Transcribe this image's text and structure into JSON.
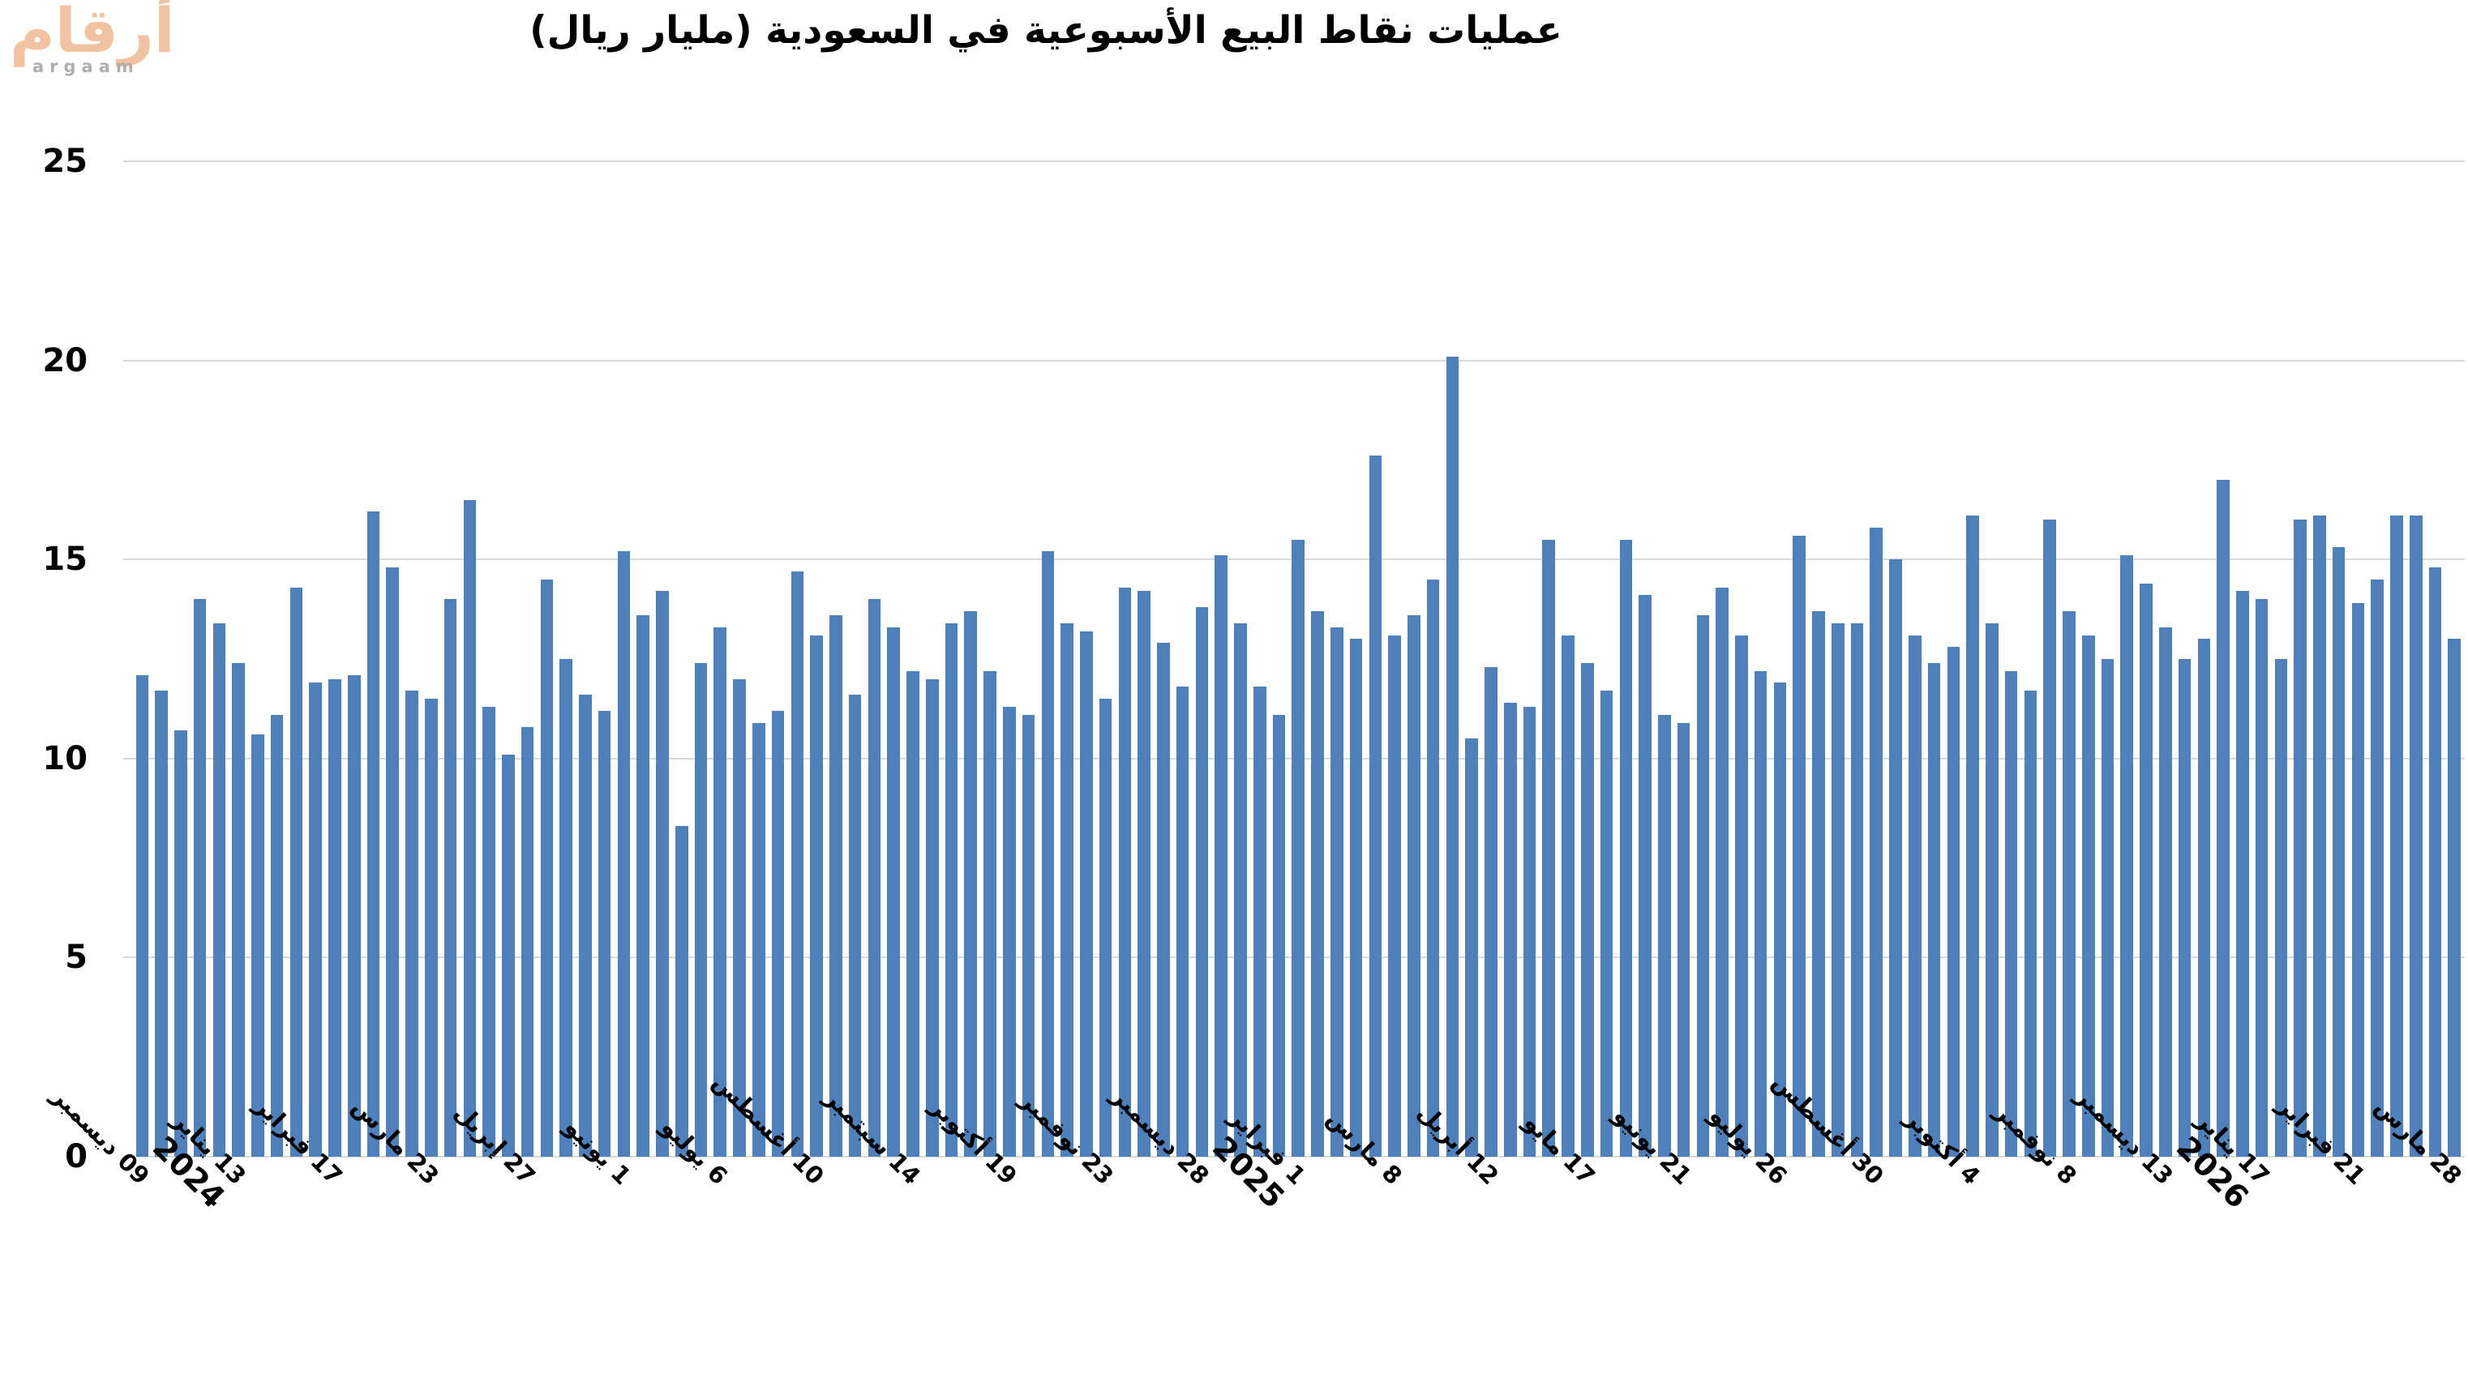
{
  "logo": {
    "arabic": "أرقام",
    "latin": "argaam"
  },
  "chart_data": {
    "type": "bar",
    "title": "عمليات نقاط البيع الأسبوعية في السعودية (مليار ريال)",
    "xlabel": "",
    "ylabel": "",
    "ylim": [
      0,
      25
    ],
    "yticks": [
      0,
      5,
      10,
      15,
      20,
      25
    ],
    "grid": true,
    "legend": "none",
    "bar_color": "#4e81bc",
    "gridline_color": "#d9d9d9",
    "x_tick_interval": 5,
    "x_tick_labels": [
      {
        "label": "09 ديسمبر"
      },
      {
        "label": "13 يناير",
        "year": "2024"
      },
      {
        "label": "17 فبراير"
      },
      {
        "label": "23 مارس"
      },
      {
        "label": "27 إبريل"
      },
      {
        "label": "1 يونيو"
      },
      {
        "label": "6 يوليو"
      },
      {
        "label": "10 أغسطس"
      },
      {
        "label": "14 سبتمبر"
      },
      {
        "label": "19 أكتوبر"
      },
      {
        "label": "23 نوفمبر"
      },
      {
        "label": "28 ديسمبر"
      },
      {
        "label": "1 فبراير",
        "year": "2025"
      },
      {
        "label": "8 مارس"
      },
      {
        "label": "12 أبريل"
      },
      {
        "label": "17 مايو"
      },
      {
        "label": "21 يونيو"
      },
      {
        "label": "26 يوليو"
      },
      {
        "label": "30 أغسطس"
      },
      {
        "label": "4 أكتوبر"
      },
      {
        "label": "8 نوفمبر"
      },
      {
        "label": "13 ديسمبر"
      },
      {
        "label": "17 يناير",
        "year": "2026"
      },
      {
        "label": "21 فبراير"
      },
      {
        "label": "28 مارس"
      }
    ],
    "values": [
      12.1,
      11.7,
      10.7,
      14.0,
      13.4,
      12.4,
      10.6,
      11.1,
      14.3,
      11.9,
      12.0,
      12.1,
      16.2,
      14.8,
      11.7,
      11.5,
      14.0,
      16.5,
      11.3,
      10.1,
      10.8,
      14.5,
      12.5,
      11.6,
      11.2,
      15.2,
      13.6,
      14.2,
      8.3,
      12.4,
      13.3,
      12.0,
      10.9,
      11.2,
      14.7,
      13.1,
      13.6,
      11.6,
      14.0,
      13.3,
      12.2,
      12.0,
      13.4,
      13.7,
      12.2,
      11.3,
      11.1,
      15.2,
      13.4,
      13.2,
      11.5,
      14.3,
      14.2,
      12.9,
      11.8,
      13.8,
      15.1,
      13.4,
      11.8,
      11.1,
      15.5,
      13.7,
      13.3,
      13.0,
      17.6,
      13.1,
      13.6,
      14.5,
      20.1,
      10.5,
      12.3,
      11.4,
      11.3,
      15.5,
      13.1,
      12.4,
      11.7,
      15.5,
      14.1,
      11.1,
      10.9,
      13.6,
      14.3,
      13.1,
      12.2,
      11.9,
      15.6,
      13.7,
      13.4,
      13.4,
      15.8,
      15.0,
      13.1,
      12.4,
      12.8,
      16.1,
      13.4,
      12.2,
      11.7,
      16.0,
      13.7,
      13.1,
      12.5,
      15.1,
      14.4,
      13.3,
      12.5,
      13.0,
      17.0,
      14.2,
      14.0,
      12.5,
      16.0,
      16.1,
      15.3,
      13.9,
      14.5,
      16.1,
      16.1,
      14.8,
      13.0
    ]
  }
}
